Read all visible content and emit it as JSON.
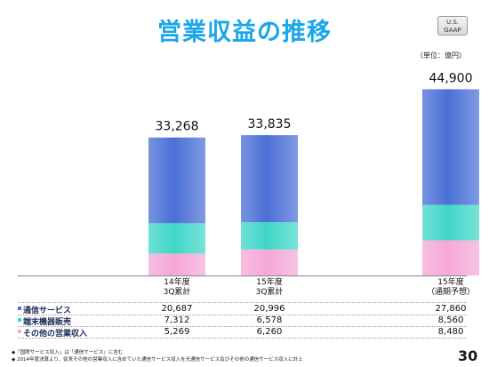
{
  "title": "営業収益の推移",
  "badge": "U.S. GAAP",
  "unit": "（単位：億円）",
  "chart_data": {
    "type": "bar",
    "stacked": true,
    "categories": [
      "14年度\n3Q累計",
      "15年度\n3Q累計",
      "15年度\n（通期予想）"
    ],
    "category_lines": [
      [
        "14年度",
        "3Q累計"
      ],
      [
        "15年度",
        "3Q累計"
      ],
      [
        "15年度",
        "（通期予想）"
      ]
    ],
    "totals": [
      "33,268",
      "33,835",
      "44,900"
    ],
    "total_values": [
      33268,
      33835,
      44900
    ],
    "series": [
      {
        "name": "その他の営業収入",
        "values": [
          5269,
          6260,
          8480
        ],
        "labels": [
          "5,269",
          "6,260",
          "8,480"
        ],
        "color": "#f5a8d8"
      },
      {
        "name": "端末機器販売",
        "values": [
          7312,
          6578,
          8560
        ],
        "labels": [
          "7,312",
          "6,578",
          "8,560"
        ],
        "color": "#3fd6c8"
      },
      {
        "name": "通信サービス",
        "values": [
          20687,
          20996,
          27860
        ],
        "labels": [
          "20,687",
          "20,996",
          "27,860"
        ],
        "color": "#4a6fd6"
      }
    ]
  },
  "table_rows": [
    {
      "label": "通信サービス",
      "values": [
        "20,687",
        "20,996",
        "27,860"
      ]
    },
    {
      "label": "端末機器販売",
      "values": [
        "7,312",
        "6,578",
        "8,560"
      ]
    },
    {
      "label": "その他の営業収入",
      "values": [
        "5,269",
        "6,260",
        "8,480"
      ]
    }
  ],
  "footnotes": [
    "◆「国際サービス収入」は「通信サービス」に含む",
    "◆ 2014年度決算より、従来その他の営業収入に含めていた通信サービス収入を光通信サービス及びその他の通信サービス収入に計上"
  ],
  "page_number": "30"
}
